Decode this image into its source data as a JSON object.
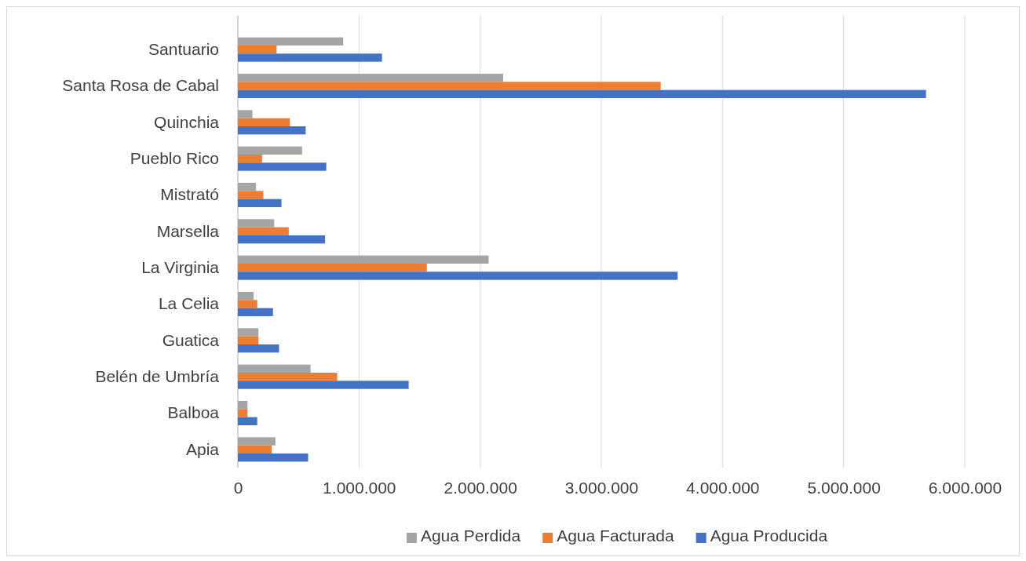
{
  "chart_data": {
    "type": "bar",
    "orientation": "horizontal",
    "categories": [
      "Santuario",
      "Santa Rosa de Cabal",
      "Quinchia",
      "Pueblo Rico",
      "Mistrató",
      "Marsella",
      "La Virginia",
      "La Celia",
      "Guatica",
      "Belén de Umbría",
      "Balboa",
      "Apia"
    ],
    "series": [
      {
        "name": "Agua Perdida",
        "color": "#a5a5a5",
        "values": [
          870000,
          2190000,
          120000,
          530000,
          150000,
          300000,
          2070000,
          130000,
          170000,
          600000,
          80000,
          310000
        ]
      },
      {
        "name": "Agua Facturada",
        "color": "#ed7d31",
        "values": [
          320000,
          3490000,
          430000,
          200000,
          210000,
          420000,
          1560000,
          160000,
          170000,
          820000,
          80000,
          280000
        ]
      },
      {
        "name": "Agua Producida",
        "color": "#4472c4",
        "values": [
          1190000,
          5680000,
          560000,
          730000,
          360000,
          720000,
          3630000,
          290000,
          340000,
          1410000,
          160000,
          580000
        ]
      }
    ],
    "xlim": [
      0,
      6000000
    ],
    "xticks": [
      0,
      {
        "value": 1000000,
        "label": "1.000.000"
      },
      {
        "value": 2000000,
        "label": "2.000.000"
      },
      {
        "value": 3000000,
        "label": "3.000.000"
      },
      {
        "value": 4000000,
        "label": "4.000.000"
      },
      {
        "value": 5000000,
        "label": "5.000.000"
      },
      {
        "value": 6000000,
        "label": "6.000.000"
      }
    ],
    "grid": "x",
    "legend": "bottom"
  }
}
